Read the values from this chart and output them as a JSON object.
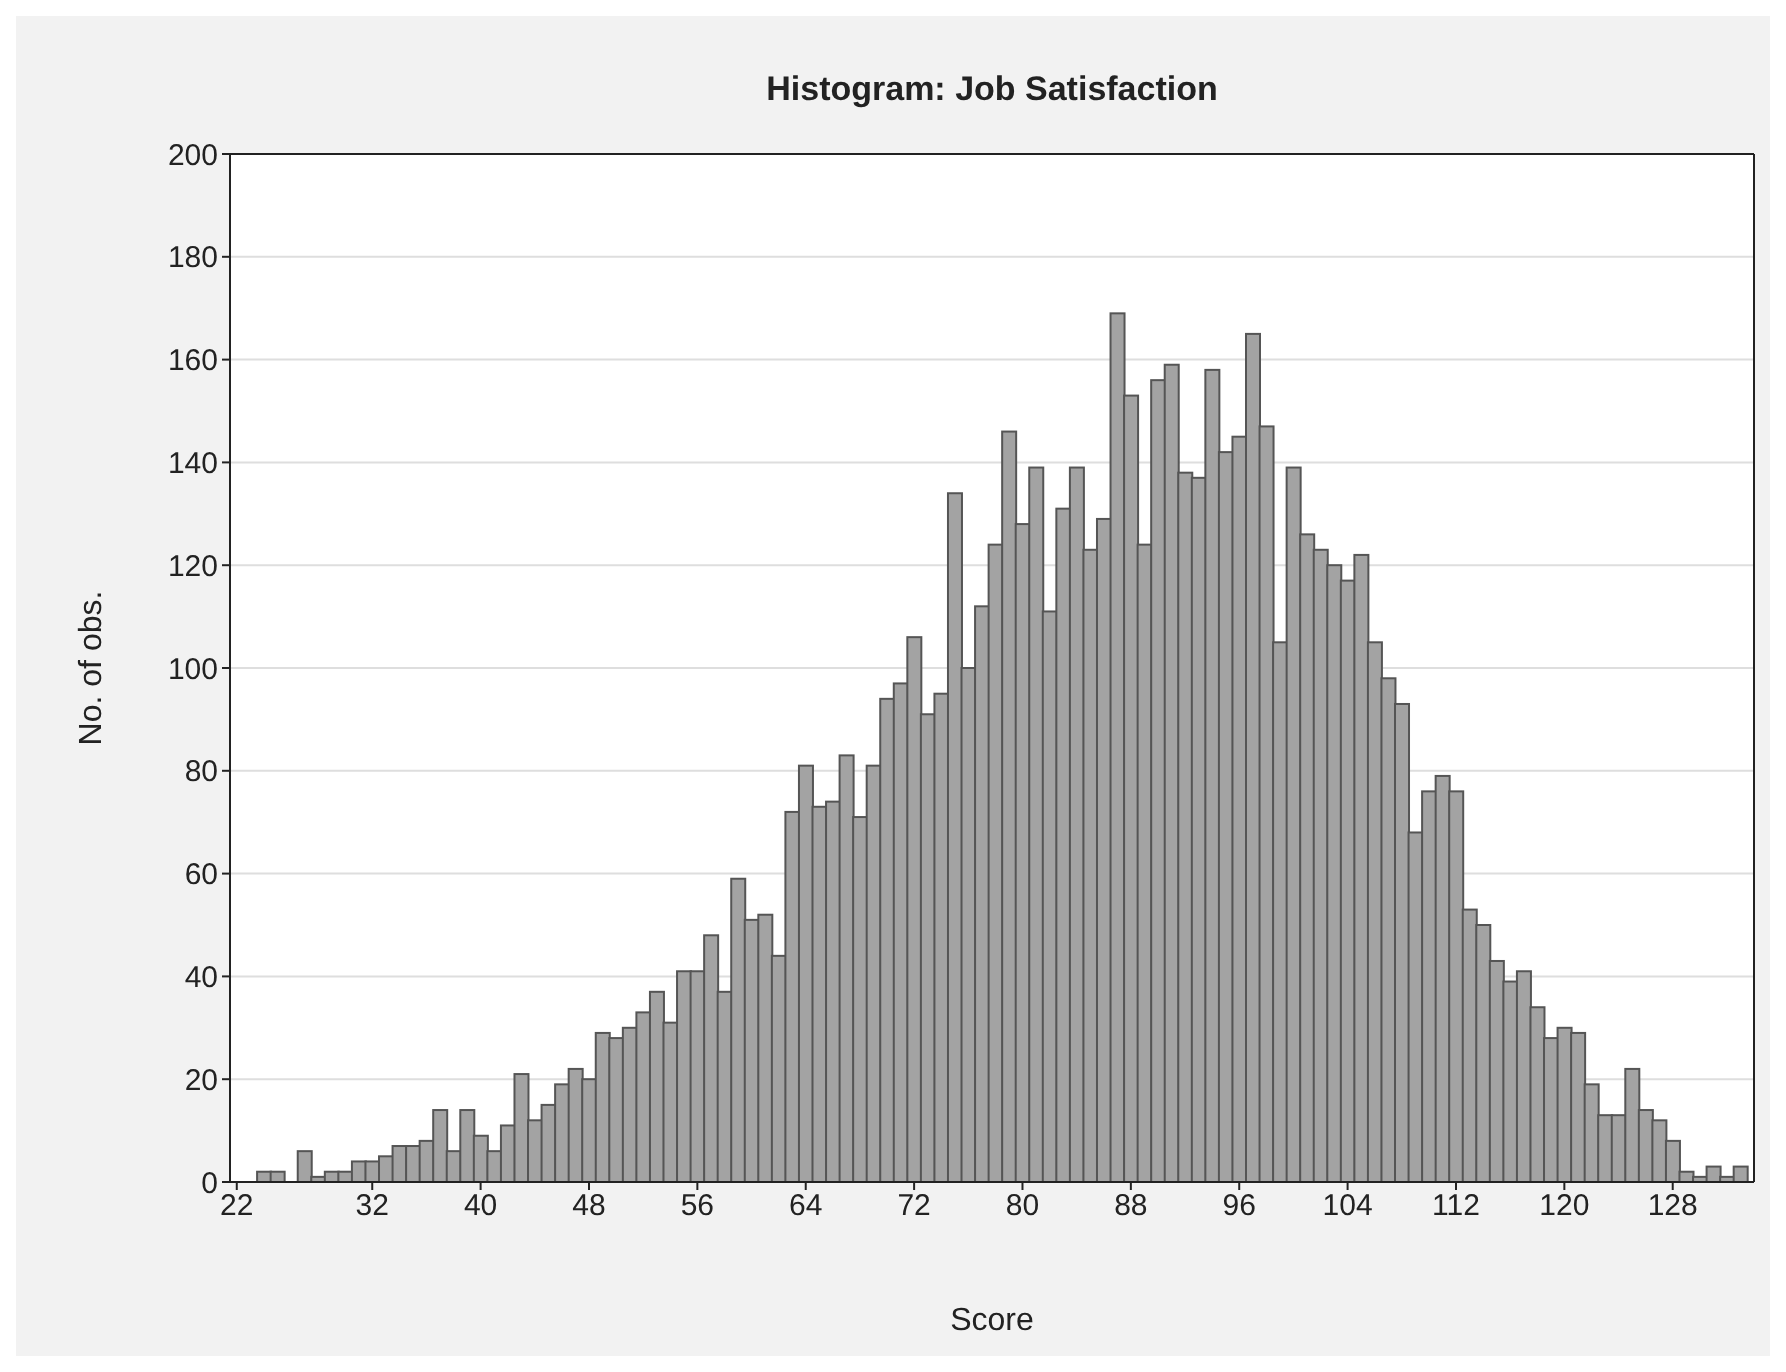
{
  "chart_data": {
    "type": "histogram",
    "title": "Histogram: Job Satisfaction",
    "xlabel": "Score",
    "ylabel": "No. of obs.",
    "bins": [
      23.5,
      24.5,
      25.5,
      26.5,
      27.5,
      28.5,
      29.5,
      30.5,
      31.5,
      32.5,
      33.5,
      34.5,
      35.5,
      36.5,
      37.5,
      38.5,
      39.5,
      40.5,
      41.5,
      42.5,
      43.5,
      44.5,
      45.5,
      46.5,
      47.5,
      48.5,
      49.5,
      50.5,
      51.5,
      52.5,
      53.5,
      54.5,
      55.5,
      56.5,
      57.5,
      58.5,
      59.5,
      60.5,
      61.5,
      62.5,
      63.5,
      64.5,
      65.5,
      66.5,
      67.5,
      68.5,
      69.5,
      70.5,
      71.5,
      72.5,
      73.5,
      74.5,
      75.5,
      76.5,
      77.5,
      78.5,
      79.5,
      80.5,
      81.5,
      82.5,
      83.5,
      84.5,
      85.5,
      86.5,
      87.5,
      88.5,
      89.5,
      90.5,
      91.5,
      92.5,
      93.5,
      94.5,
      95.5,
      96.5,
      97.5,
      98.5,
      99.5,
      100.5,
      101.5,
      102.5,
      103.5,
      104.5,
      105.5,
      106.5,
      107.5,
      108.5,
      109.5,
      110.5,
      111.5,
      112.5,
      113.5,
      114.5,
      115.5,
      116.5,
      117.5,
      118.5,
      119.5,
      120.5,
      121.5,
      122.5,
      123.5,
      124.5,
      125.5,
      126.5,
      127.5,
      128.5,
      129.5,
      130.5,
      131.5,
      132.5,
      133.5
    ],
    "values": [
      2,
      2,
      0,
      6,
      1,
      2,
      2,
      4,
      4,
      5,
      7,
      7,
      8,
      14,
      6,
      14,
      9,
      6,
      11,
      21,
      12,
      15,
      19,
      22,
      20,
      29,
      28,
      30,
      33,
      37,
      31,
      41,
      41,
      48,
      37,
      59,
      51,
      52,
      44,
      72,
      81,
      73,
      74,
      83,
      71,
      81,
      94,
      97,
      106,
      91,
      95,
      134,
      100,
      112,
      124,
      146,
      128,
      139,
      111,
      131,
      139,
      123,
      129,
      169,
      153,
      124,
      156,
      159,
      138,
      137,
      158,
      142,
      145,
      165,
      147,
      105,
      139,
      126,
      123,
      120,
      117,
      122,
      105,
      98,
      93,
      68,
      76,
      79,
      76,
      53,
      50,
      43,
      39,
      41,
      34,
      28,
      30,
      29,
      19,
      13,
      13,
      22,
      14,
      12,
      8,
      2,
      1,
      3,
      1,
      3
    ],
    "color": "#a3a3a3",
    "xlim": [
      21.5,
      134
    ],
    "xticks": [
      22,
      32,
      40,
      48,
      56,
      64,
      72,
      80,
      88,
      96,
      104,
      112,
      120,
      128
    ],
    "ylim": [
      0,
      200
    ],
    "yticks": [
      0,
      20,
      40,
      60,
      80,
      100,
      120,
      140,
      160,
      180,
      200
    ],
    "grid": "y"
  }
}
